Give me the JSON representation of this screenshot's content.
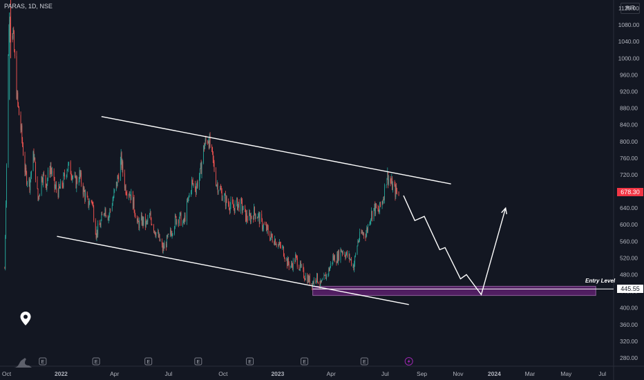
{
  "header": {
    "symbol": "PARAS, 1D, NSE",
    "currency": "INR"
  },
  "price_tags": {
    "last": "678.30",
    "entry": "445.55"
  },
  "annotations": {
    "entry_label": "Entry Level"
  },
  "colors": {
    "background": "#131722",
    "up": "#26a69a",
    "down": "#ef5350",
    "last_price_tag": "#f23645",
    "entry_zone": "#9c27b0",
    "event_marker": "#9c27b0"
  },
  "icons": [
    "map-pin-icon",
    "tradingview-logo-icon",
    "earnings-marker-icon",
    "dividend-bolt-icon"
  ],
  "chart_data": {
    "type": "candlestick",
    "symbol": "PARAS",
    "timeframe": "1D",
    "exchange": "NSE",
    "y_ticks": [
      280,
      320,
      360,
      400,
      440,
      480,
      520,
      560,
      600,
      640,
      680,
      720,
      760,
      800,
      840,
      880,
      920,
      960,
      1000,
      1040,
      1080,
      1120
    ],
    "ylim": [
      260,
      1140
    ],
    "x_ticks": [
      "Oct",
      "2022",
      "Apr",
      "Jul",
      "Oct",
      "2023",
      "Apr",
      "Jul",
      "Sep",
      "Nov",
      "2024",
      "Mar",
      "May",
      "Jul"
    ],
    "x_tick_dates": [
      "2021-10-01",
      "2022-01-01",
      "2022-04-01",
      "2022-07-01",
      "2022-10-01",
      "2023-01-01",
      "2023-04-01",
      "2023-07-01",
      "2023-09-01",
      "2023-11-01",
      "2024-01-01",
      "2024-03-01",
      "2024-05-01",
      "2024-07-01"
    ],
    "xlim": [
      "2021-09-20",
      "2024-07-20"
    ],
    "bold_x_ticks": [
      "2022",
      "2023",
      "2024"
    ],
    "last_price": 678.3,
    "entry_level": 445.55,
    "series": [
      {
        "values": [
          [
            "2021-09-28",
            495
          ],
          [
            "2021-10-05",
            1085
          ],
          [
            "2021-10-12",
            1060
          ],
          [
            "2021-10-19",
            900
          ],
          [
            "2021-10-26",
            820
          ],
          [
            "2021-11-02",
            720
          ],
          [
            "2021-11-09",
            700
          ],
          [
            "2021-11-16",
            770
          ],
          [
            "2021-11-23",
            660
          ],
          [
            "2021-11-30",
            720
          ],
          [
            "2021-12-07",
            700
          ],
          [
            "2021-12-14",
            740
          ],
          [
            "2021-12-21",
            690
          ],
          [
            "2021-12-28",
            680
          ],
          [
            "2022-01-04",
            700
          ],
          [
            "2022-01-11",
            740
          ],
          [
            "2022-01-18",
            730
          ],
          [
            "2022-01-25",
            700
          ],
          [
            "2022-02-01",
            720
          ],
          [
            "2022-02-08",
            680
          ],
          [
            "2022-02-15",
            650
          ],
          [
            "2022-02-22",
            660
          ],
          [
            "2022-03-01",
            580
          ],
          [
            "2022-03-08",
            600
          ],
          [
            "2022-03-15",
            640
          ],
          [
            "2022-03-22",
            620
          ],
          [
            "2022-03-29",
            660
          ],
          [
            "2022-04-05",
            700
          ],
          [
            "2022-04-12",
            755
          ],
          [
            "2022-04-19",
            690
          ],
          [
            "2022-04-26",
            680
          ],
          [
            "2022-05-03",
            650
          ],
          [
            "2022-05-10",
            600
          ],
          [
            "2022-05-17",
            610
          ],
          [
            "2022-05-24",
            600
          ],
          [
            "2022-05-31",
            620
          ],
          [
            "2022-06-07",
            590
          ],
          [
            "2022-06-14",
            570
          ],
          [
            "2022-06-21",
            540
          ],
          [
            "2022-06-28",
            560
          ],
          [
            "2022-07-05",
            580
          ],
          [
            "2022-07-12",
            610
          ],
          [
            "2022-07-19",
            620
          ],
          [
            "2022-07-26",
            600
          ],
          [
            "2022-08-02",
            650
          ],
          [
            "2022-08-09",
            700
          ],
          [
            "2022-08-16",
            690
          ],
          [
            "2022-08-23",
            720
          ],
          [
            "2022-08-30",
            790
          ],
          [
            "2022-09-06",
            810
          ],
          [
            "2022-09-13",
            760
          ],
          [
            "2022-09-20",
            700
          ],
          [
            "2022-09-27",
            680
          ],
          [
            "2022-10-04",
            660
          ],
          [
            "2022-10-11",
            650
          ],
          [
            "2022-10-18",
            640
          ],
          [
            "2022-10-25",
            650
          ],
          [
            "2022-11-01",
            645
          ],
          [
            "2022-11-08",
            620
          ],
          [
            "2022-11-15",
            615
          ],
          [
            "2022-11-22",
            630
          ],
          [
            "2022-11-29",
            620
          ],
          [
            "2022-12-06",
            600
          ],
          [
            "2022-12-13",
            590
          ],
          [
            "2022-12-20",
            570
          ],
          [
            "2022-12-27",
            565
          ],
          [
            "2023-01-03",
            550
          ],
          [
            "2023-01-10",
            540
          ],
          [
            "2023-01-17",
            510
          ],
          [
            "2023-01-24",
            500
          ],
          [
            "2023-01-31",
            520
          ],
          [
            "2023-02-07",
            500
          ],
          [
            "2023-02-14",
            480
          ],
          [
            "2023-02-21",
            470
          ],
          [
            "2023-02-28",
            460
          ],
          [
            "2023-03-07",
            475
          ],
          [
            "2023-03-14",
            455
          ],
          [
            "2023-03-21",
            470
          ],
          [
            "2023-03-28",
            490
          ],
          [
            "2023-04-04",
            520
          ],
          [
            "2023-04-11",
            520
          ],
          [
            "2023-04-18",
            540
          ],
          [
            "2023-04-25",
            530
          ],
          [
            "2023-05-02",
            520
          ],
          [
            "2023-05-09",
            500
          ],
          [
            "2023-05-16",
            560
          ],
          [
            "2023-05-23",
            580
          ],
          [
            "2023-05-30",
            580
          ],
          [
            "2023-06-06",
            620
          ],
          [
            "2023-06-13",
            640
          ],
          [
            "2023-06-20",
            630
          ],
          [
            "2023-06-27",
            660
          ],
          [
            "2023-07-04",
            720
          ],
          [
            "2023-07-11",
            700
          ],
          [
            "2023-07-18",
            680
          ],
          [
            "2023-07-25",
            678
          ]
        ]
      }
    ],
    "trend_lines": [
      {
        "from": [
          "2022-03-10",
          860
        ],
        "to": [
          "2023-10-20",
          698
        ]
      },
      {
        "from": [
          "2021-12-25",
          572
        ],
        "to": [
          "2023-08-10",
          408
        ]
      }
    ],
    "projection_path": [
      [
        "2023-08-01",
        670
      ],
      [
        "2023-08-20",
        610
      ],
      [
        "2023-09-05",
        620
      ],
      [
        "2023-10-01",
        540
      ],
      [
        "2023-10-10",
        545
      ],
      [
        "2023-11-05",
        470
      ],
      [
        "2023-11-15",
        480
      ],
      [
        "2023-12-10",
        432
      ],
      [
        "2024-01-20",
        640
      ]
    ],
    "entry_zone": {
      "from": "2023-03-01",
      "to": "2024-06-20",
      "low": 430,
      "high": 452
    },
    "event_markers": [
      {
        "date": "2021-12-01",
        "label": "E"
      },
      {
        "date": "2022-03-01",
        "label": "E"
      },
      {
        "date": "2022-05-28",
        "label": "E"
      },
      {
        "date": "2022-08-20",
        "label": "E"
      },
      {
        "date": "2022-11-15",
        "label": "E"
      },
      {
        "date": "2023-02-15",
        "label": "E"
      },
      {
        "date": "2023-05-27",
        "label": "E"
      }
    ],
    "dividend_markers": [
      {
        "date": "2023-08-10"
      }
    ]
  }
}
